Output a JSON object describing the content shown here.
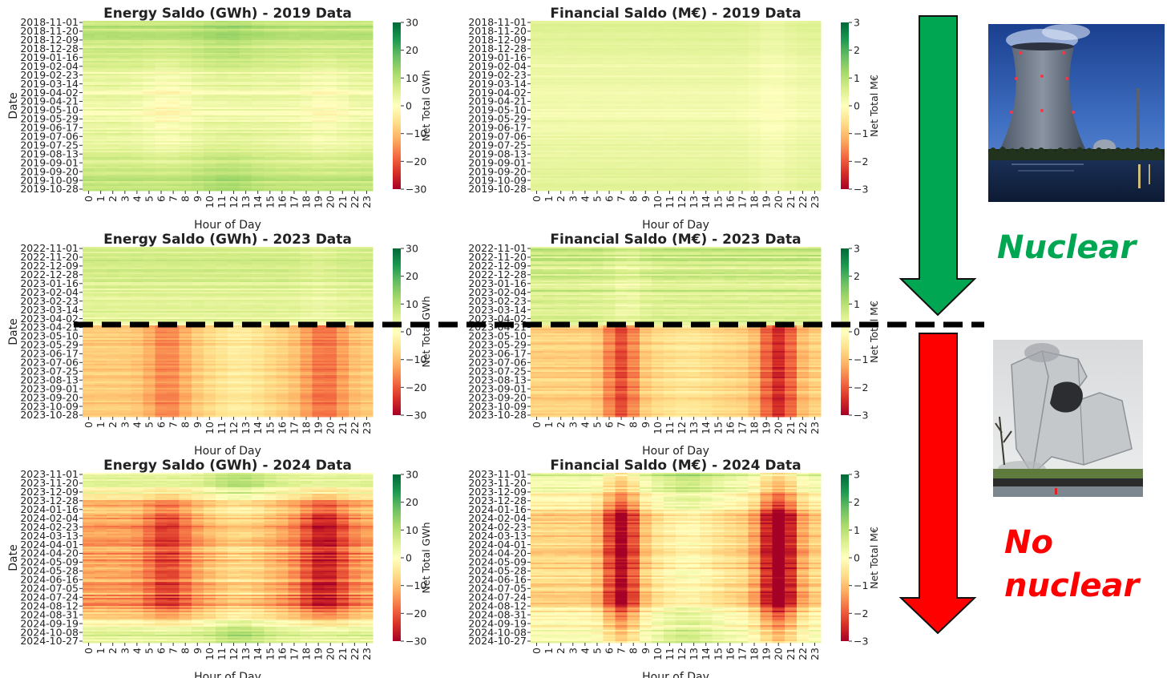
{
  "charts": {
    "energy_2019": {
      "title": "Energy Saldo (GWh) - 2019 Data",
      "ylabel": "Date",
      "xlabel": "Hour of Day",
      "cbar_label": "Net Total GWh",
      "yticks": [
        "2018-11-01",
        "2018-11-20",
        "2018-12-09",
        "2018-12-28",
        "2019-01-16",
        "2019-02-04",
        "2019-02-23",
        "2019-03-14",
        "2019-04-02",
        "2019-04-21",
        "2019-05-10",
        "2019-05-29",
        "2019-06-17",
        "2019-07-06",
        "2019-07-25",
        "2019-08-13",
        "2019-09-01",
        "2019-09-20",
        "2019-10-09",
        "2019-10-28"
      ],
      "cbar_ticks": [
        "30",
        "20",
        "10",
        "0",
        "−10",
        "−20",
        "−30"
      ]
    },
    "financial_2019": {
      "title": "Financial Saldo (M€) - 2019 Data",
      "ylabel": "",
      "xlabel": "Hour of Day",
      "cbar_label": "Net Total M€",
      "yticks": [
        "2018-11-01",
        "2018-11-20",
        "2018-12-09",
        "2018-12-28",
        "2019-01-16",
        "2019-02-04",
        "2019-02-23",
        "2019-03-14",
        "2019-04-02",
        "2019-04-21",
        "2019-05-10",
        "2019-05-29",
        "2019-06-17",
        "2019-07-06",
        "2019-07-25",
        "2019-08-13",
        "2019-09-01",
        "2019-09-20",
        "2019-10-09",
        "2019-10-28"
      ],
      "cbar_ticks": [
        "3",
        "2",
        "1",
        "0",
        "−1",
        "−2",
        "−3"
      ]
    },
    "energy_2023": {
      "title": "Energy Saldo (GWh) - 2023 Data",
      "ylabel": "Date",
      "xlabel": "Hour of Day",
      "cbar_label": "Net Total GWh",
      "yticks": [
        "2022-11-01",
        "2022-11-20",
        "2022-12-09",
        "2022-12-28",
        "2023-01-16",
        "2023-02-04",
        "2023-02-23",
        "2023-03-14",
        "2023-04-02",
        "2023-04-21",
        "2023-05-10",
        "2023-05-29",
        "2023-06-17",
        "2023-07-06",
        "2023-07-25",
        "2023-08-13",
        "2023-09-01",
        "2023-09-20",
        "2023-10-09",
        "2023-10-28"
      ],
      "cbar_ticks": [
        "30",
        "20",
        "10",
        "0",
        "−10",
        "−20",
        "−30"
      ]
    },
    "financial_2023": {
      "title": "Financial Saldo (M€) - 2023 Data",
      "ylabel": "",
      "xlabel": "Hour of Day",
      "cbar_label": "Net Total M€",
      "yticks": [
        "2022-11-01",
        "2022-11-20",
        "2022-12-09",
        "2022-12-28",
        "2023-01-16",
        "2023-02-04",
        "2023-02-23",
        "2023-03-14",
        "2023-04-02",
        "2023-04-21",
        "2023-05-10",
        "2023-05-29",
        "2023-06-17",
        "2023-07-06",
        "2023-07-25",
        "2023-08-13",
        "2023-09-01",
        "2023-09-20",
        "2023-10-09",
        "2023-10-28"
      ],
      "cbar_ticks": [
        "3",
        "2",
        "1",
        "0",
        "−1",
        "−2",
        "−3"
      ]
    },
    "energy_2024": {
      "title": "Energy Saldo (GWh) - 2024 Data",
      "ylabel": "Date",
      "xlabel": "Hour of Day",
      "cbar_label": "Net Total GWh",
      "yticks": [
        "2023-11-01",
        "2023-11-20",
        "2023-12-09",
        "2023-12-28",
        "2024-01-16",
        "2024-02-04",
        "2024-02-23",
        "2024-03-13",
        "2024-04-01",
        "2024-04-20",
        "2024-05-09",
        "2024-05-28",
        "2024-06-16",
        "2024-07-05",
        "2024-07-24",
        "2024-08-12",
        "2024-08-31",
        "2024-09-19",
        "2024-10-08",
        "2024-10-27"
      ],
      "cbar_ticks": [
        "30",
        "20",
        "10",
        "0",
        "−10",
        "−20",
        "−30"
      ]
    },
    "financial_2024": {
      "title": "Financial Saldo (M€) - 2024 Data",
      "ylabel": "",
      "xlabel": "Hour of Day",
      "cbar_label": "Net Total M€",
      "yticks": [
        "2023-11-01",
        "2023-11-20",
        "2023-12-09",
        "2023-12-28",
        "2024-01-16",
        "2024-02-04",
        "2024-02-23",
        "2024-03-13",
        "2024-04-01",
        "2024-04-20",
        "2024-05-09",
        "2024-05-28",
        "2024-06-16",
        "2024-07-05",
        "2024-07-24",
        "2024-08-12",
        "2024-08-31",
        "2024-09-19",
        "2024-10-08",
        "2024-10-27"
      ],
      "cbar_ticks": [
        "3",
        "2",
        "1",
        "0",
        "−1",
        "−2",
        "−3"
      ]
    }
  },
  "xticks": [
    "0",
    "1",
    "2",
    "3",
    "4",
    "5",
    "6",
    "7",
    "8",
    "9",
    "10",
    "11",
    "12",
    "13",
    "14",
    "15",
    "16",
    "17",
    "18",
    "19",
    "20",
    "21",
    "22",
    "23"
  ],
  "annotations": {
    "nuclear_label": "Nuclear",
    "no_nuclear_line1": "No",
    "no_nuclear_line2": "nuclear"
  },
  "colors": {
    "nuclear_green": "#00a651",
    "no_nuclear_red": "#ff0000",
    "colormap": "RdYlGn"
  },
  "chart_data": [
    {
      "type": "heatmap",
      "title": "Energy Saldo (GWh) - 2019 Data",
      "xlabel": "Hour of Day",
      "ylabel": "Date",
      "colorbar": "Net Total GWh",
      "vlim": [
        -30,
        30
      ],
      "x": "hours 0–23",
      "y": "daily, 2018-11-01 to 2019-10-31",
      "description_values": {
        "winter_mean": 8,
        "spring_mean": 3,
        "summer_mean": -1,
        "autumn_mean": 6
      }
    },
    {
      "type": "heatmap",
      "title": "Financial Saldo (M€) - 2019 Data",
      "xlabel": "Hour of Day",
      "colorbar": "Net Total M€",
      "vlim": [
        -3,
        3
      ],
      "description_values": {
        "winter_mean": 0.6,
        "spring_mean": 0.3,
        "summer_mean": 0.1,
        "autumn_mean": 0.4
      }
    },
    {
      "type": "heatmap",
      "title": "Energy Saldo (GWh) - 2023 Data",
      "xlabel": "Hour of Day",
      "ylabel": "Date",
      "colorbar": "Net Total GWh",
      "vlim": [
        -30,
        30
      ],
      "description_values": {
        "before_2023-04-15_mean": 5,
        "after_2023-04-15_mean": -8,
        "evening_peak_after": -12
      }
    },
    {
      "type": "heatmap",
      "title": "Financial Saldo (M€) - 2023 Data",
      "xlabel": "Hour of Day",
      "colorbar": "Net Total M€",
      "vlim": [
        -3,
        3
      ],
      "description_values": {
        "before_2023-04-15_mean": 0.7,
        "after_2023-04-15_mean": -0.6,
        "peak_hours_after": [
          6,
          7,
          19,
          20,
          21
        ],
        "peak_value_after": -2
      }
    },
    {
      "type": "heatmap",
      "title": "Energy Saldo (GWh) - 2024 Data",
      "xlabel": "Hour of Day",
      "ylabel": "Date",
      "colorbar": "Net Total GWh",
      "vlim": [
        -30,
        30
      ],
      "description_values": {
        "winter_mean": 2,
        "summer_mean": -15,
        "evening_peak_summer": -22
      }
    },
    {
      "type": "heatmap",
      "title": "Financial Saldo (M€) - 2024 Data",
      "xlabel": "Hour of Day",
      "colorbar": "Net Total M€",
      "vlim": [
        -3,
        3
      ],
      "description_values": {
        "winter_mean": 0.3,
        "summer_mean": -1.2,
        "peak_hours": [
          6,
          7,
          19,
          20,
          21
        ],
        "peak_value": -2.6
      }
    }
  ]
}
